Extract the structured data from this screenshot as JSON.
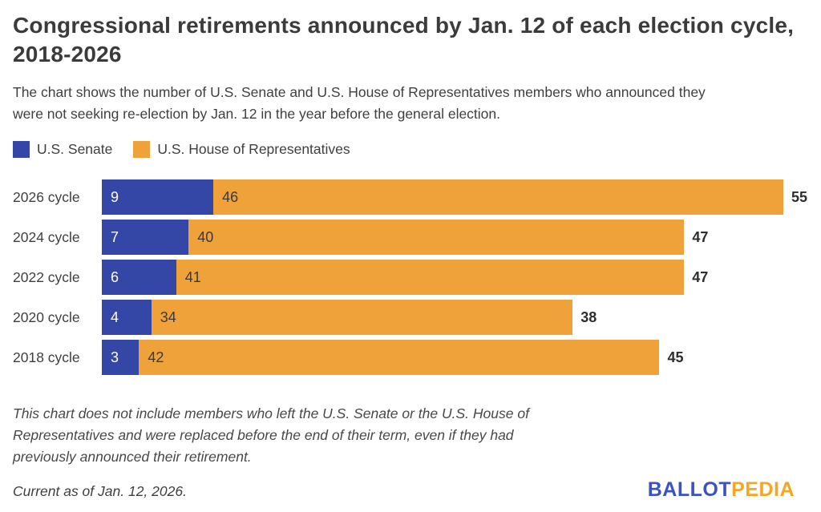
{
  "header": {
    "title_lines": [
      "Congressional retirements announced by Jan. 12 of each election cycle,",
      "2018-2026"
    ],
    "subtitle_lines": [
      "The chart shows the number of U.S. Senate and U.S. House of Representatives members who announced they",
      "were not seeking re-election by Jan. 12 in the year before the general election."
    ]
  },
  "chart_data": {
    "type": "bar",
    "orientation": "horizontal",
    "stacked": true,
    "grid": false,
    "legend_position": "top-left",
    "categories": [
      "2026 cycle",
      "2024 cycle",
      "2022 cycle",
      "2020 cycle",
      "2018 cycle"
    ],
    "series": [
      {
        "name": "U.S. Senate",
        "color": "#3447A6",
        "values": [
          9,
          7,
          6,
          4,
          3
        ]
      },
      {
        "name": "U.S. House of Representatives",
        "color": "#F0A23A",
        "values": [
          46,
          40,
          41,
          34,
          42
        ]
      }
    ],
    "totals": [
      55,
      47,
      47,
      38,
      45
    ],
    "xlim": [
      0,
      55
    ]
  },
  "footer": {
    "note_lines": [
      "This chart does not include members who left the U.S. Senate or the U.S. House of",
      "Representatives and were replaced before the end of their term, even if they had",
      "previously announced their retirement."
    ],
    "current_as_of": "Current as of Jan. 12, 2026.",
    "logo": {
      "ballot": "BALLOT",
      "pedia": "PEDIA",
      "ballot_color": "#3B51C6",
      "pedia_color": "#F5A623"
    }
  }
}
